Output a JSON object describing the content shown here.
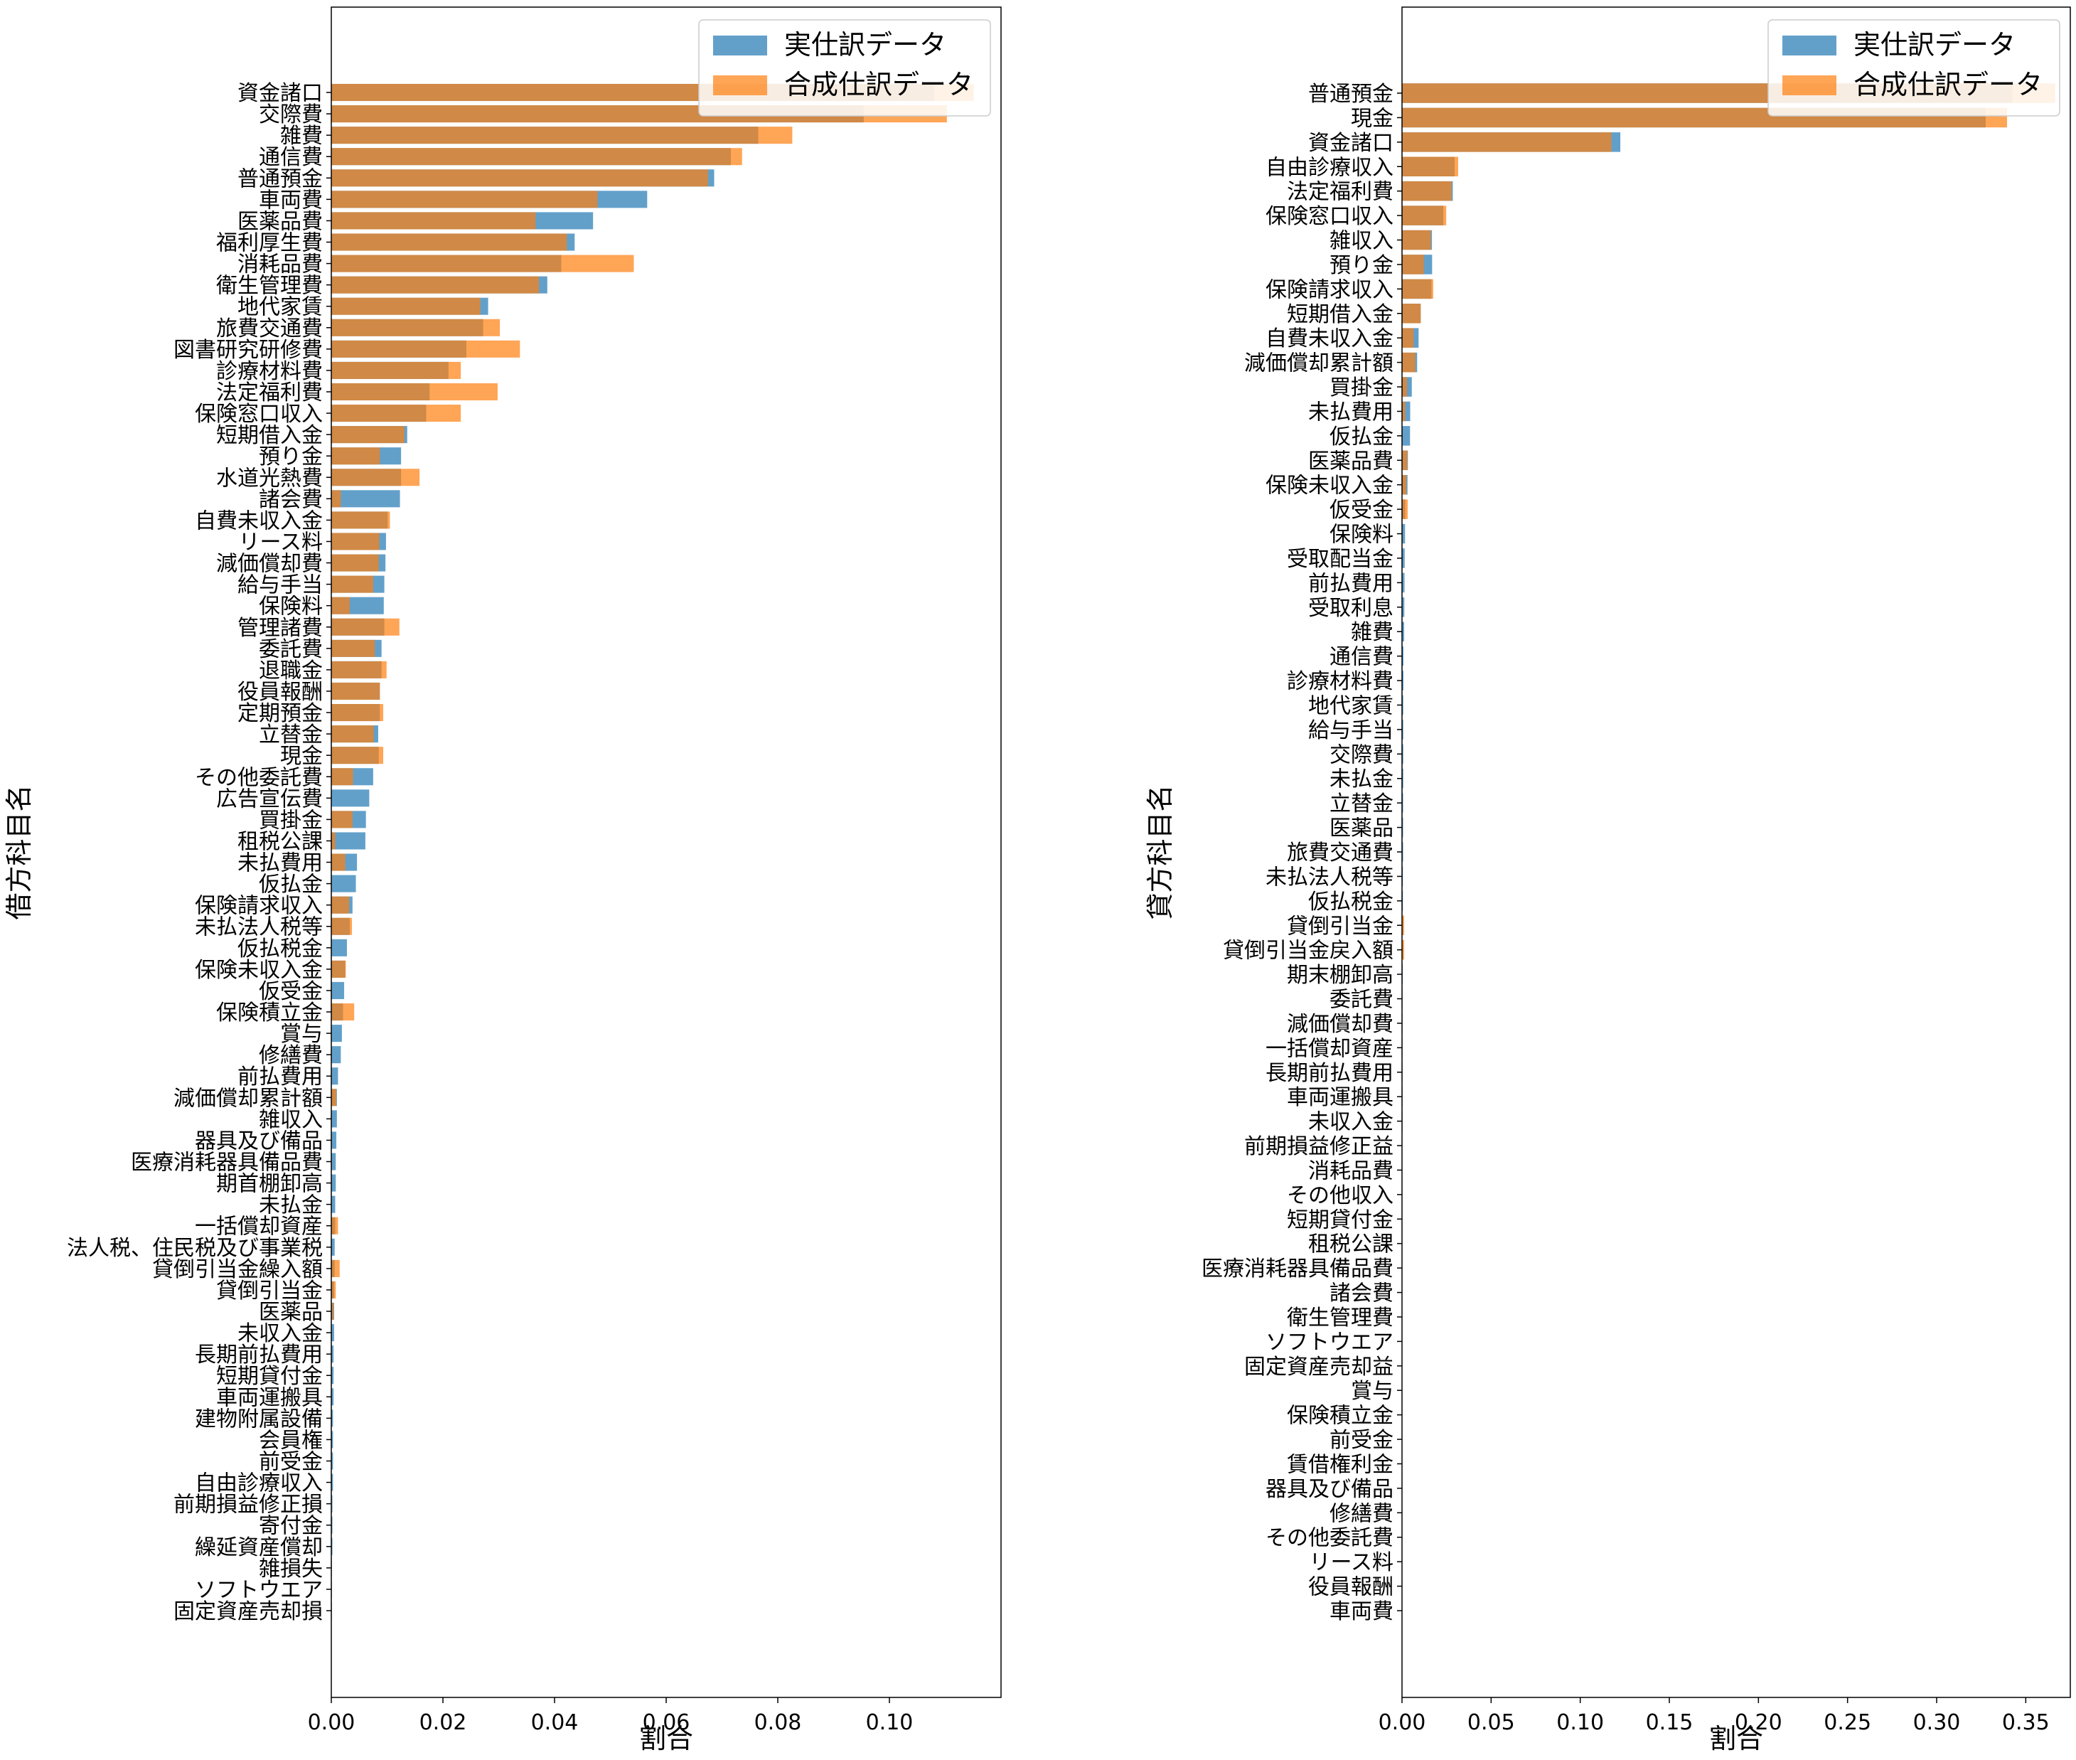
{
  "chart_data": [
    {
      "type": "bar",
      "orientation": "horizontal",
      "xlabel": "割合",
      "ylabel": "借方科目名",
      "xlim": [
        0,
        0.12
      ],
      "xticks": [
        "0.00",
        "0.02",
        "0.04",
        "0.06",
        "0.08",
        "0.10"
      ],
      "xtick_values": [
        0,
        0.02,
        0.04,
        0.06,
        0.08,
        0.1
      ],
      "legend": {
        "position": "top-right",
        "entries": [
          "実仕訳データ",
          "合成仕訳データ"
        ]
      },
      "categories": [
        "固定資産売却損",
        "ソフトウエア",
        "雑損失",
        "繰延資産償却",
        "寄付金",
        "前期損益修正損",
        "自由診療収入",
        "前受金",
        "会員権",
        "建物附属設備",
        "車両運搬具",
        "短期貸付金",
        "長期前払費用",
        "未収入金",
        "医薬品",
        "貸倒引当金",
        "貸倒引当金繰入額",
        "法人税、住民税及び事業税",
        "一括償却資産",
        "未払金",
        "期首棚卸高",
        "医療消耗器具備品費",
        "器具及び備品",
        "雑収入",
        "減価償却累計額",
        "前払費用",
        "修繕費",
        "賞与",
        "保険積立金",
        "仮受金",
        "保険未収入金",
        "仮払税金",
        "未払法人税等",
        "保険請求収入",
        "仮払金",
        "未払費用",
        "租税公課",
        "買掛金",
        "広告宣伝費",
        "その他委託費",
        "現金",
        "立替金",
        "定期預金",
        "役員報酬",
        "退職金",
        "委託費",
        "管理諸費",
        "保険料",
        "給与手当",
        "減価償却費",
        "リース料",
        "自費未収入金",
        "諸会費",
        "水道光熱費",
        "預り金",
        "短期借入金",
        "保険窓口収入",
        "法定福利費",
        "診療材料費",
        "図書研究研修費",
        "旅費交通費",
        "地代家賃",
        "衛生管理費",
        "消耗品費",
        "福利厚生費",
        "医薬品費",
        "車両費",
        "普通預金",
        "通信費",
        "雑費",
        "交際費",
        "資金諸口"
      ],
      "series": [
        {
          "name": "実仕訳データ",
          "color": "#1f77b4",
          "values": [
            0.0001,
            0.0001,
            0.0001,
            0.0002,
            0.0002,
            0.0002,
            0.0003,
            0.0003,
            0.0003,
            0.0003,
            0.0004,
            0.0004,
            0.0004,
            0.0005,
            0.0005,
            0.0005,
            0.0006,
            0.0006,
            0.0007,
            0.0007,
            0.0008,
            0.0008,
            0.0009,
            0.001,
            0.001,
            0.0012,
            0.0017,
            0.0019,
            0.0021,
            0.0023,
            0.0025,
            0.0028,
            0.0033,
            0.0038,
            0.0044,
            0.0046,
            0.0061,
            0.0062,
            0.0068,
            0.0075,
            0.0085,
            0.0084,
            0.0087,
            0.0087,
            0.009,
            0.009,
            0.0095,
            0.0094,
            0.0095,
            0.0097,
            0.0098,
            0.0101,
            0.0123,
            0.0125,
            0.0125,
            0.0136,
            0.017,
            0.0176,
            0.021,
            0.0242,
            0.0272,
            0.0281,
            0.0387,
            0.0412,
            0.0436,
            0.0469,
            0.0566,
            0.0686,
            0.0716,
            0.0765,
            0.0954,
            0.108
          ]
        },
        {
          "name": "合成仕訳データ",
          "color": "#ff7f0e",
          "values": [
            0,
            0,
            0,
            0,
            0,
            0,
            0,
            0,
            0,
            0,
            0,
            0,
            0,
            0,
            0.0004,
            0.0008,
            0.0015,
            0,
            0.0012,
            0,
            0,
            0,
            0,
            0,
            0.0009,
            0,
            0,
            0,
            0.0041,
            0,
            0.0026,
            0,
            0.0037,
            0.0032,
            0,
            0.0025,
            0.0007,
            0.0038,
            0,
            0.0039,
            0.0093,
            0.0076,
            0.0093,
            0.0087,
            0.0099,
            0.0078,
            0.0122,
            0.0033,
            0.0075,
            0.0085,
            0.0086,
            0.0105,
            0.0017,
            0.0158,
            0.0087,
            0.0131,
            0.0232,
            0.0298,
            0.0232,
            0.0338,
            0.0302,
            0.0267,
            0.0372,
            0.0542,
            0.0422,
            0.0366,
            0.0477,
            0.0675,
            0.0736,
            0.0826,
            0.1103,
            0.1151
          ]
        }
      ]
    },
    {
      "type": "bar",
      "orientation": "horizontal",
      "xlabel": "割合",
      "ylabel": "貸方科目名",
      "xlim": [
        0,
        0.375
      ],
      "xticks": [
        "0.00",
        "0.05",
        "0.10",
        "0.15",
        "0.20",
        "0.25",
        "0.30",
        "0.35"
      ],
      "xtick_values": [
        0,
        0.05,
        0.1,
        0.15,
        0.2,
        0.25,
        0.3,
        0.35
      ],
      "legend": {
        "position": "top-right",
        "entries": [
          "実仕訳データ",
          "合成仕訳データ"
        ]
      },
      "categories": [
        "車両費",
        "役員報酬",
        "リース料",
        "その他委託費",
        "修繕費",
        "器具及び備品",
        "賃借権利金",
        "前受金",
        "保険積立金",
        "賞与",
        "固定資産売却益",
        "ソフトウエア",
        "衛生管理費",
        "諸会費",
        "医療消耗器具備品費",
        "租税公課",
        "短期貸付金",
        "その他収入",
        "消耗品費",
        "前期損益修正益",
        "未収入金",
        "車両運搬具",
        "長期前払費用",
        "一括償却資産",
        "減価償却費",
        "委託費",
        "期末棚卸高",
        "貸倒引当金戻入額",
        "貸倒引当金",
        "仮払税金",
        "未払法人税等",
        "旅費交通費",
        "医薬品",
        "立替金",
        "未払金",
        "交際費",
        "給与手当",
        "地代家賃",
        "診療材料費",
        "通信費",
        "雑費",
        "受取利息",
        "前払費用",
        "受取配当金",
        "保険料",
        "仮受金",
        "保険未収入金",
        "医薬品費",
        "仮払金",
        "未払費用",
        "買掛金",
        "減価償却累計額",
        "自費未収入金",
        "短期借入金",
        "保険請求収入",
        "預り金",
        "雑収入",
        "保険窓口収入",
        "法定福利費",
        "自由診療収入",
        "資金諸口",
        "現金",
        "普通預金"
      ],
      "series": [
        {
          "name": "実仕訳データ",
          "color": "#1f77b4",
          "values": [
            0.0002,
            0.0002,
            0.0002,
            0.0002,
            0.0002,
            0.0002,
            0.0002,
            0.0002,
            0.0002,
            0.0002,
            0.0002,
            0.0002,
            0.0002,
            0.0002,
            0.0002,
            0.0002,
            0.0002,
            0.0002,
            0.0002,
            0.0002,
            0.0003,
            0.0003,
            0.0003,
            0.0003,
            0.0003,
            0.0003,
            0.0004,
            0.0004,
            0.0005,
            0.0005,
            0.0005,
            0.0006,
            0.0006,
            0.0006,
            0.0007,
            0.0007,
            0.0007,
            0.0007,
            0.0008,
            0.0008,
            0.0012,
            0.0013,
            0.0014,
            0.0015,
            0.0017,
            0.0018,
            0.0031,
            0.0033,
            0.0045,
            0.0046,
            0.0055,
            0.0085,
            0.0093,
            0.0105,
            0.0165,
            0.0169,
            0.0168,
            0.0232,
            0.0285,
            0.0295,
            0.1225,
            0.3275,
            0.3425
          ]
        },
        {
          "name": "合成仕訳データ",
          "color": "#ff7f0e",
          "values": [
            0,
            0,
            0,
            0,
            0,
            0,
            0,
            0,
            0,
            0,
            0,
            0,
            0,
            0,
            0,
            0,
            0,
            0,
            0,
            0,
            0,
            0,
            0,
            0,
            0,
            0,
            0,
            0.0012,
            0.0012,
            0,
            0,
            0,
            0,
            0,
            0,
            0,
            0,
            0,
            0,
            0,
            0,
            0,
            0,
            0,
            0,
            0.0032,
            0.0025,
            0.003,
            0,
            0.0018,
            0.0028,
            0.0075,
            0.0065,
            0.0105,
            0.0175,
            0.0122,
            0.0162,
            0.0248,
            0.0278,
            0.0315,
            0.1175,
            0.3395,
            0.3665
          ]
        }
      ]
    }
  ]
}
